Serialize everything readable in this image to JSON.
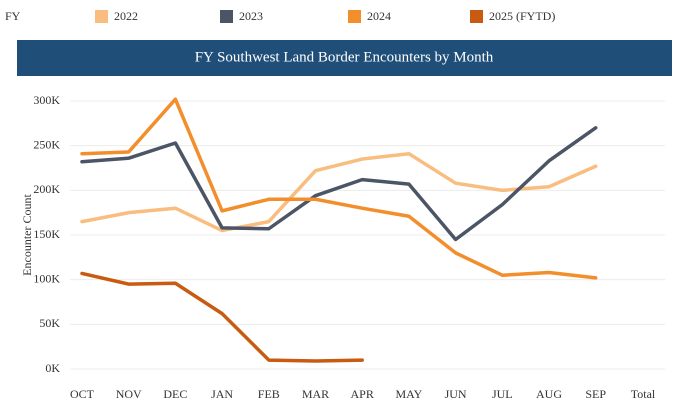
{
  "chart_data": {
    "type": "line",
    "legend_title": "FY",
    "title": "FY Southwest Land Border Encounters by Month",
    "y_label": "Encounter Count",
    "categories": [
      "OCT",
      "NOV",
      "DEC",
      "JAN",
      "FEB",
      "MAR",
      "APR",
      "MAY",
      "JUN",
      "JUL",
      "AUG",
      "SEP",
      "Total"
    ],
    "series": [
      {
        "name": "2022",
        "color": "#f8bd7f",
        "values": [
          165000,
          175000,
          180000,
          155000,
          165000,
          222000,
          235000,
          241000,
          208000,
          200000,
          204000,
          227000,
          null
        ]
      },
      {
        "name": "2023",
        "color": "#4b5565",
        "values": [
          232000,
          236000,
          253000,
          158000,
          157000,
          194000,
          212000,
          207000,
          145000,
          184000,
          233000,
          270000,
          null
        ]
      },
      {
        "name": "2024",
        "color": "#f28e2b",
        "values": [
          241000,
          243000,
          302000,
          177000,
          190000,
          190000,
          180000,
          171000,
          130000,
          105000,
          108000,
          102000,
          null
        ]
      },
      {
        "name": "2025 (FYTD)",
        "color": "#c85a11",
        "values": [
          107000,
          95000,
          96000,
          62000,
          10000,
          9000,
          10000,
          null,
          null,
          null,
          null,
          null,
          null
        ]
      }
    ],
    "ylim": [
      0,
      300000
    ],
    "yticks": [
      {
        "value": 0,
        "label": "0K"
      },
      {
        "value": 50000,
        "label": "50K"
      },
      {
        "value": 100000,
        "label": "100K"
      },
      {
        "value": 150000,
        "label": "150K"
      },
      {
        "value": 200000,
        "label": "200K"
      },
      {
        "value": 250000,
        "label": "250K"
      },
      {
        "value": 300000,
        "label": "300K"
      }
    ],
    "grid": true
  }
}
